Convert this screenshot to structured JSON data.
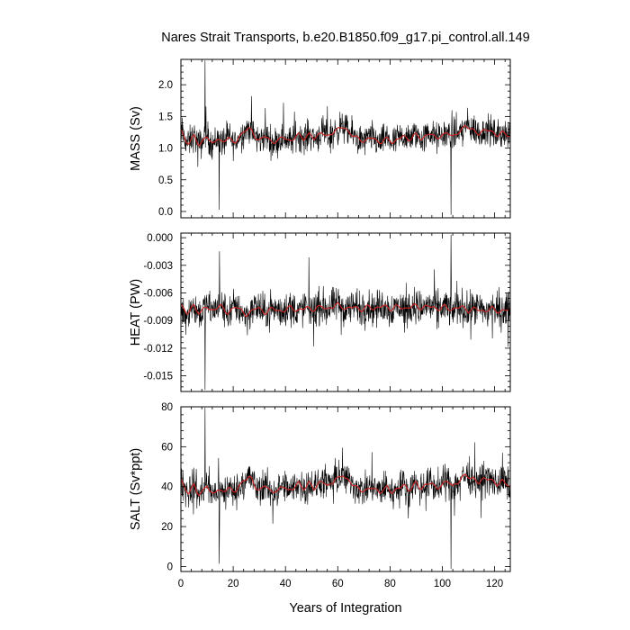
{
  "figure": {
    "title": "Nares Strait Transports, b.e20.B1850.f09_g17.pi_control.all.149",
    "xlabel": "Years of Integration",
    "raw_color": "#000000",
    "smooth_color": "#cc2222"
  },
  "chart_data": [
    {
      "type": "line",
      "ylabel": "MASS (Sv)",
      "xlim": [
        0,
        126
      ],
      "ylim": [
        -0.1,
        2.4
      ],
      "xticks": [
        0,
        20,
        40,
        60,
        80,
        100,
        120
      ],
      "yticks": [
        0.0,
        0.5,
        1.0,
        1.5,
        2.0
      ],
      "ytick_labels": [
        "0.0",
        "0.5",
        "1.0",
        "1.5",
        "2.0"
      ],
      "xtick_labels": [],
      "grid": false,
      "series": [
        {
          "values_per_year": [
            1.3,
            1.18,
            1.1,
            1.08,
            1.14,
            1.2,
            1.12,
            1.05,
            1.08,
            1.15,
            1.2,
            1.12,
            1.06,
            1.1,
            1.16,
            1.12,
            1.08,
            1.12,
            1.18,
            1.14,
            1.08,
            1.1,
            1.16,
            1.2,
            1.25,
            1.3,
            1.32,
            1.28,
            1.2,
            1.15,
            1.12,
            1.15,
            1.2,
            1.18,
            1.12,
            1.08,
            1.1,
            1.12,
            1.15,
            1.18,
            1.16,
            1.12,
            1.1,
            1.14,
            1.2,
            1.22,
            1.18,
            1.14,
            1.18,
            1.22,
            1.2,
            1.15,
            1.18,
            1.22,
            1.25,
            1.22,
            1.18,
            1.2,
            1.24,
            1.28,
            1.3,
            1.32,
            1.34,
            1.3,
            1.25,
            1.22,
            1.2,
            1.18,
            1.15,
            1.12,
            1.1,
            1.12,
            1.16,
            1.18,
            1.15,
            1.1,
            1.08,
            1.1,
            1.14,
            1.16,
            1.12,
            1.08,
            1.1,
            1.14,
            1.18,
            1.2,
            1.16,
            1.12,
            1.15,
            1.2,
            1.22,
            1.18,
            1.14,
            1.16,
            1.2,
            1.24,
            1.22,
            1.18,
            1.15,
            1.18,
            1.2,
            1.22,
            1.25,
            1.22,
            1.18,
            1.2,
            1.24,
            1.28,
            1.32,
            1.35,
            1.33,
            1.3,
            1.28,
            1.25,
            1.22,
            1.25,
            1.28,
            1.3,
            1.28,
            1.25,
            1.22,
            1.2,
            1.22,
            1.25,
            1.24,
            1.2,
            1.18
          ],
          "noise_amplitude": 0.26,
          "spikes": [
            [
              9.2,
              2.38
            ],
            [
              14.6,
              0.03
            ],
            [
              103.3,
              -0.05
            ]
          ]
        }
      ]
    },
    {
      "type": "line",
      "ylabel": "HEAT (PW)",
      "xlim": [
        0,
        126
      ],
      "ylim": [
        -0.0167,
        0.0005
      ],
      "xticks": [
        0,
        20,
        40,
        60,
        80,
        100,
        120
      ],
      "yticks": [
        0.0,
        -0.003,
        -0.006,
        -0.009,
        -0.012,
        -0.015
      ],
      "ytick_labels": [
        "0.000",
        "-0.003",
        "-0.006",
        "-0.009",
        "-0.012",
        "-0.015"
      ],
      "xtick_labels": [],
      "grid": false,
      "series": [
        {
          "values_per_year": [
            -0.0072,
            -0.0078,
            -0.0082,
            -0.008,
            -0.0076,
            -0.0074,
            -0.0078,
            -0.0082,
            -0.008,
            -0.0076,
            -0.0074,
            -0.0078,
            -0.008,
            -0.0078,
            -0.0075,
            -0.0073,
            -0.0076,
            -0.008,
            -0.0082,
            -0.008,
            -0.0077,
            -0.0074,
            -0.0076,
            -0.0079,
            -0.0082,
            -0.0084,
            -0.0083,
            -0.008,
            -0.0077,
            -0.0075,
            -0.0077,
            -0.008,
            -0.0082,
            -0.0081,
            -0.0078,
            -0.0076,
            -0.0077,
            -0.0079,
            -0.0081,
            -0.008,
            -0.0078,
            -0.0076,
            -0.0075,
            -0.0077,
            -0.0079,
            -0.008,
            -0.0078,
            -0.0076,
            -0.0075,
            -0.0077,
            -0.0079,
            -0.0078,
            -0.0076,
            -0.0075,
            -0.0074,
            -0.0076,
            -0.0078,
            -0.0077,
            -0.0075,
            -0.0073,
            -0.0072,
            -0.0074,
            -0.0076,
            -0.0078,
            -0.0077,
            -0.0075,
            -0.0074,
            -0.0076,
            -0.0078,
            -0.0079,
            -0.0077,
            -0.0075,
            -0.0074,
            -0.0076,
            -0.0078,
            -0.0077,
            -0.0075,
            -0.0073,
            -0.0074,
            -0.0076,
            -0.0078,
            -0.0077,
            -0.0075,
            -0.0074,
            -0.0075,
            -0.0077,
            -0.0078,
            -0.0076,
            -0.0074,
            -0.0073,
            -0.0074,
            -0.0076,
            -0.0077,
            -0.0076,
            -0.0074,
            -0.0073,
            -0.0075,
            -0.0077,
            -0.0078,
            -0.0077,
            -0.0075,
            -0.0074,
            -0.0076,
            -0.0078,
            -0.0079,
            -0.0077,
            -0.0075,
            -0.0074,
            -0.0076,
            -0.0078,
            -0.008,
            -0.0079,
            -0.0077,
            -0.0076,
            -0.0078,
            -0.008,
            -0.0081,
            -0.0079,
            -0.0077,
            -0.0076,
            -0.0078,
            -0.008,
            -0.0081,
            -0.008,
            -0.0078,
            -0.0077,
            -0.0078
          ],
          "noise_amplitude": 0.0021,
          "spikes": [
            [
              9.2,
              -0.0165
            ],
            [
              14.8,
              -0.0015
            ],
            [
              103.3,
              0.0003
            ]
          ]
        }
      ]
    },
    {
      "type": "line",
      "ylabel": "SALT (Sv*ppt)",
      "xlim": [
        0,
        126
      ],
      "ylim": [
        -2.5,
        80
      ],
      "xticks": [
        0,
        20,
        40,
        60,
        80,
        100,
        120
      ],
      "xtick_labels": [
        "0",
        "20",
        "40",
        "60",
        "80",
        "100",
        "120"
      ],
      "yticks": [
        0,
        20,
        40,
        60,
        80
      ],
      "ytick_labels": [
        "0",
        "20",
        "40",
        "60",
        "80"
      ],
      "grid": false,
      "series": [
        {
          "values_per_year": [
            44,
            40,
            38,
            37,
            39,
            41,
            38,
            36,
            37,
            39,
            41,
            38,
            36,
            37,
            39,
            38,
            37,
            38,
            40,
            39,
            37,
            38,
            40,
            41,
            43,
            44,
            45,
            44,
            41,
            39,
            38,
            39,
            41,
            40,
            38,
            37,
            38,
            38,
            39,
            40,
            40,
            38,
            38,
            39,
            41,
            42,
            40,
            39,
            40,
            42,
            41,
            39,
            40,
            42,
            43,
            42,
            40,
            41,
            42,
            44,
            44,
            45,
            46,
            44,
            43,
            42,
            41,
            40,
            39,
            38,
            38,
            38,
            39,
            40,
            39,
            38,
            37,
            38,
            39,
            40,
            38,
            37,
            38,
            39,
            40,
            41,
            40,
            38,
            39,
            41,
            42,
            40,
            39,
            40,
            41,
            42,
            42,
            40,
            39,
            40,
            41,
            42,
            43,
            42,
            40,
            41,
            42,
            44,
            45,
            46,
            45,
            44,
            44,
            43,
            42,
            43,
            44,
            44,
            44,
            43,
            42,
            41,
            42,
            43,
            42,
            41,
            40
          ],
          "noise_amplitude": 9.0,
          "spikes": [
            [
              9.2,
              79.5
            ],
            [
              14.6,
              1.5
            ],
            [
              103.3,
              -1.0
            ]
          ]
        }
      ]
    }
  ]
}
